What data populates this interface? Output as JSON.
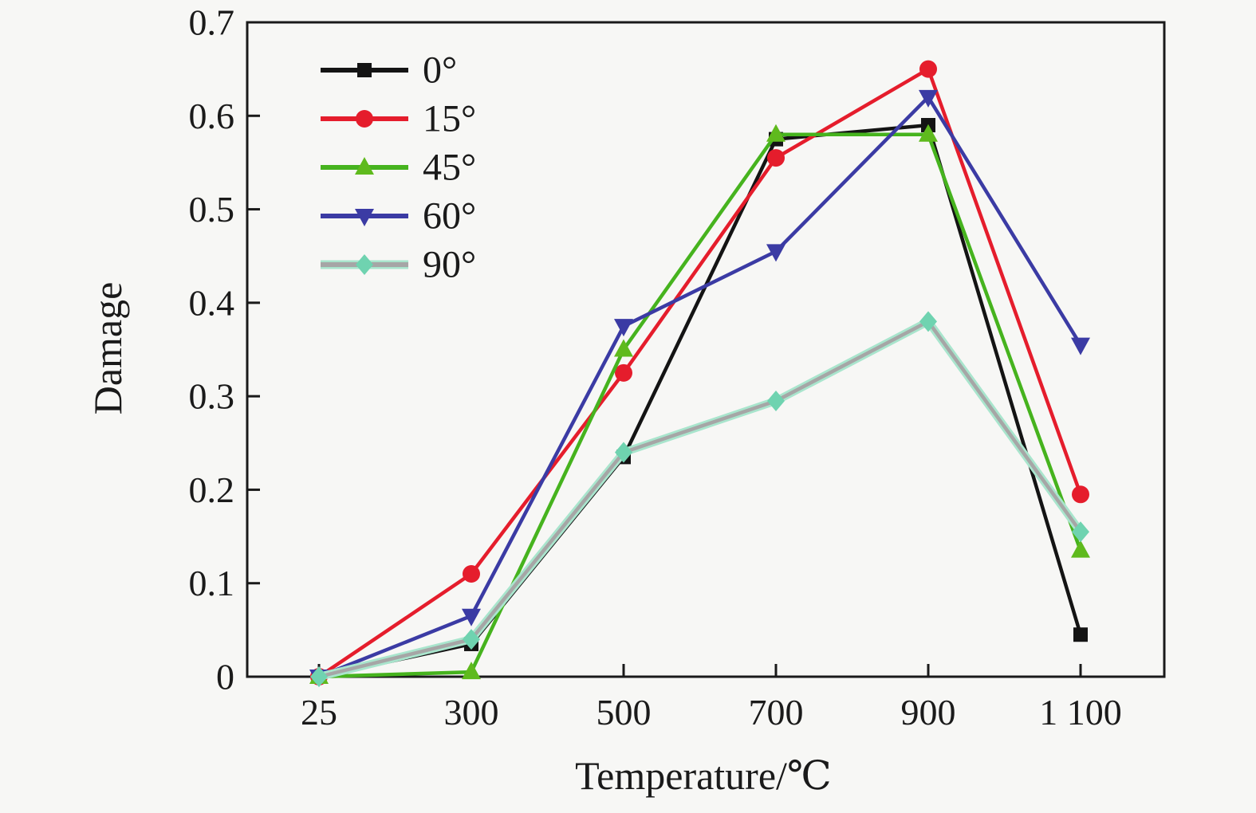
{
  "figure": {
    "background": "#f7f7f5",
    "axis_color": "#1a1a1a"
  },
  "chart_data": {
    "type": "line",
    "title": "",
    "xlabel": "Temperature/℃",
    "ylabel": "Damage",
    "categories": [
      25,
      300,
      500,
      700,
      900,
      1100
    ],
    "x_tick_labels": [
      "25",
      "300",
      "500",
      "700",
      "900",
      "1 100"
    ],
    "y_ticks": [
      0,
      0.1,
      0.2,
      0.3,
      0.4,
      0.5,
      0.6,
      0.7
    ],
    "y_tick_labels": [
      "0",
      "0.1",
      "0.2",
      "0.3",
      "0.4",
      "0.5",
      "0.6",
      "0.7"
    ],
    "ylim": [
      0,
      0.7
    ],
    "grid": false,
    "legend_position": "upper-left-inside",
    "series": [
      {
        "name": "0°",
        "marker": "square",
        "line_color": "#141414",
        "marker_color": "#141414",
        "values": [
          0,
          0.035,
          0.235,
          0.575,
          0.59,
          0.045
        ]
      },
      {
        "name": "15°",
        "marker": "circle",
        "line_color": "#e51d2c",
        "marker_color": "#e51d2c",
        "values": [
          0,
          0.11,
          0.325,
          0.555,
          0.65,
          0.195
        ]
      },
      {
        "name": "45°",
        "marker": "triangle-up",
        "line_color": "#46b31e",
        "marker_color": "#5fba1d",
        "values": [
          0,
          0.005,
          0.35,
          0.58,
          0.58,
          0.135
        ]
      },
      {
        "name": "60°",
        "marker": "triangle-down",
        "line_color": "#3b3ba4",
        "marker_color": "#3b3ba4",
        "values": [
          0,
          0.065,
          0.375,
          0.455,
          0.62,
          0.355
        ]
      },
      {
        "name": "90°",
        "marker": "diamond",
        "line_color": "#a6a6a6",
        "halo_color": "#a9e5cd",
        "marker_color": "#6fd3b0",
        "values": [
          0,
          0.04,
          0.24,
          0.295,
          0.38,
          0.155
        ]
      }
    ]
  }
}
